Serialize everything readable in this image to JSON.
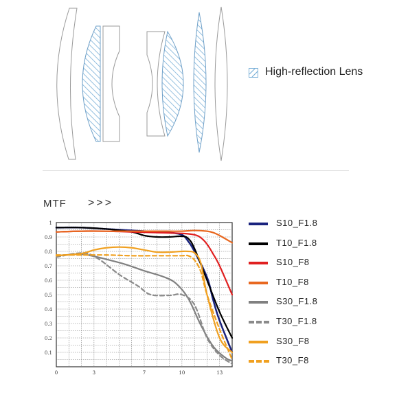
{
  "lens_legend": {
    "label": "High-reflection Lens",
    "hatch_color": "#7ab0d8"
  },
  "section": {
    "title": "MTF",
    "arrows": ">>>"
  },
  "chart_data": {
    "type": "line",
    "title": "",
    "xlabel": "",
    "ylabel": "",
    "xlim": [
      0,
      14
    ],
    "ylim": [
      0,
      1
    ],
    "x_ticks": [
      0,
      3,
      7,
      10,
      13
    ],
    "y_ticks": [
      0.1,
      0.2,
      0.3,
      0.4,
      0.5,
      0.6,
      0.7,
      0.8,
      0.9,
      1
    ],
    "grid": true,
    "legend_position": "right",
    "series": [
      {
        "name": "S10_F1.8",
        "color": "#1a237e",
        "dash": "dotted",
        "x": [
          0,
          2,
          4,
          6,
          8,
          9,
          10,
          10.5,
          11,
          12,
          12.5,
          13,
          14
        ],
        "y": [
          0.965,
          0.965,
          0.955,
          0.945,
          0.935,
          0.93,
          0.915,
          0.87,
          0.8,
          0.62,
          0.46,
          0.32,
          0.1
        ]
      },
      {
        "name": "T10_F1.8",
        "color": "#000000",
        "dash": "solid",
        "x": [
          0,
          2,
          4,
          6,
          7,
          8,
          9,
          10,
          10.5,
          11,
          12,
          13,
          14
        ],
        "y": [
          0.965,
          0.965,
          0.955,
          0.935,
          0.91,
          0.9,
          0.9,
          0.905,
          0.89,
          0.82,
          0.6,
          0.38,
          0.2
        ]
      },
      {
        "name": "S10_F8",
        "color": "#e02020",
        "dash": "solid",
        "x": [
          0,
          2,
          4,
          6,
          8,
          10,
          11,
          11.5,
          12,
          12.5,
          13,
          14
        ],
        "y": [
          0.935,
          0.94,
          0.94,
          0.935,
          0.93,
          0.925,
          0.915,
          0.895,
          0.85,
          0.78,
          0.7,
          0.5
        ]
      },
      {
        "name": "T10_F8",
        "color": "#e86820",
        "dash": "solid",
        "x": [
          0,
          2,
          4,
          6,
          8,
          10,
          11,
          12,
          12.5,
          13,
          14
        ],
        "y": [
          0.935,
          0.94,
          0.94,
          0.94,
          0.94,
          0.94,
          0.945,
          0.94,
          0.93,
          0.91,
          0.86
        ]
      },
      {
        "name": "S30_F1.8",
        "color": "#808080",
        "dash": "solid",
        "x": [
          0,
          1.5,
          2.5,
          4,
          5.5,
          7,
          8.5,
          9.5,
          10.5,
          11.5,
          12.5,
          13.5,
          14
        ],
        "y": [
          0.77,
          0.78,
          0.775,
          0.745,
          0.71,
          0.665,
          0.625,
          0.58,
          0.475,
          0.29,
          0.14,
          0.06,
          0.04
        ]
      },
      {
        "name": "T30_F1.8",
        "color": "#8a8a8a",
        "dash": "dashed",
        "x": [
          0,
          1.5,
          2.5,
          3.5,
          5,
          6.5,
          7.5,
          9,
          10,
          11,
          12,
          13,
          14
        ],
        "y": [
          0.76,
          0.785,
          0.785,
          0.74,
          0.64,
          0.56,
          0.5,
          0.495,
          0.5,
          0.43,
          0.2,
          0.08,
          0.02
        ]
      },
      {
        "name": "S30_F8",
        "color": "#f0a020",
        "dash": "solid",
        "x": [
          0,
          2,
          3,
          4,
          5,
          6,
          7,
          8,
          9,
          10,
          10.5,
          11,
          11.5,
          12,
          13,
          14
        ],
        "y": [
          0.77,
          0.785,
          0.81,
          0.825,
          0.83,
          0.825,
          0.81,
          0.795,
          0.795,
          0.8,
          0.8,
          0.79,
          0.72,
          0.5,
          0.2,
          0.1
        ]
      },
      {
        "name": "T30_F8",
        "color": "#f0a020",
        "dash": "dashed",
        "x": [
          0,
          2,
          4,
          6,
          8,
          9,
          10,
          10.5,
          11,
          11.5,
          12,
          13,
          14
        ],
        "y": [
          0.775,
          0.775,
          0.775,
          0.77,
          0.77,
          0.77,
          0.77,
          0.77,
          0.74,
          0.66,
          0.5,
          0.26,
          0.05
        ]
      }
    ]
  }
}
